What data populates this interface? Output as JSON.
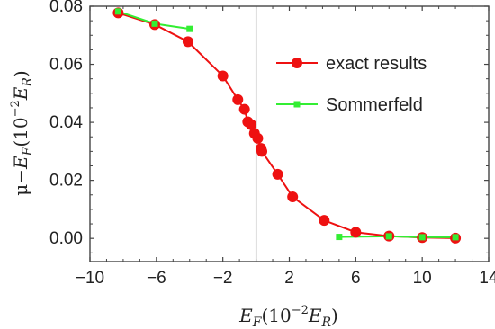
{
  "chart_data": {
    "type": "line",
    "xlim": [
      -10,
      14
    ],
    "ylim": [
      -0.008,
      0.08
    ],
    "x_ticks": [
      -10,
      -6,
      -2,
      2,
      6,
      10,
      14
    ],
    "x_tick_labels": [
      "−10",
      "−6",
      "−2",
      "2",
      "6",
      "10",
      "14"
    ],
    "y_ticks": [
      0.0,
      0.02,
      0.04,
      0.06,
      0.08
    ],
    "y_tick_labels": [
      "0.00",
      "0.02",
      "0.04",
      "0.06",
      "0.08"
    ],
    "xlabel": "E_F(10^{-2}E_R)",
    "ylabel": "μ−E_F(10^{-2}E_R)",
    "vertical_line_x": 0,
    "legend_position": "top-right",
    "grid": false,
    "series": [
      {
        "name": "exact results",
        "color": "#ee1111",
        "marker": "circle",
        "points": [
          [
            -8.3,
            0.0777
          ],
          [
            -6.1,
            0.0737
          ],
          [
            -4.1,
            0.0678
          ],
          [
            -2.0,
            0.056
          ],
          [
            -1.1,
            0.0478
          ],
          [
            -0.7,
            0.0445
          ],
          [
            -0.5,
            0.0402
          ],
          [
            -0.3,
            0.0392
          ],
          [
            -0.1,
            0.0362
          ],
          [
            0.1,
            0.0345
          ],
          [
            0.3,
            0.031
          ],
          [
            0.35,
            0.03
          ],
          [
            1.3,
            0.0221
          ],
          [
            2.2,
            0.0143
          ],
          [
            4.1,
            0.0062
          ],
          [
            6.0,
            0.0021
          ],
          [
            8.0,
            0.0008
          ],
          [
            10.0,
            0.0003
          ],
          [
            12.0,
            0.0001
          ]
        ]
      },
      {
        "name": "Sommerfeld",
        "color": "#33ee33",
        "marker": "square",
        "segments": [
          [
            [
              -8.3,
              0.0782
            ],
            [
              -6.1,
              0.074
            ],
            [
              -4.0,
              0.0722
            ]
          ],
          [
            [
              5.0,
              0.0005
            ],
            [
              8.0,
              0.0007
            ],
            [
              10.0,
              0.0004
            ],
            [
              12.0,
              0.0004
            ]
          ]
        ]
      }
    ]
  }
}
